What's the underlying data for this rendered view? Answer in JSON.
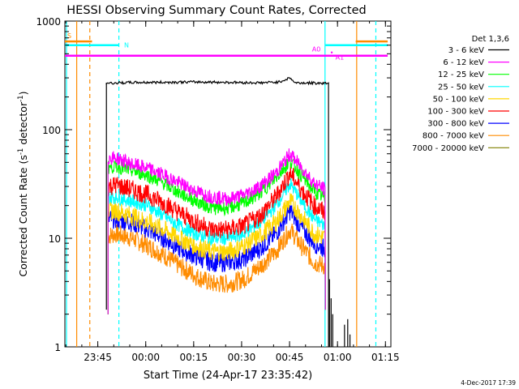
{
  "chart_data": {
    "type": "line",
    "title": "HESSI Observing Summary Count Rates, Corrected",
    "xlabel": "Start Time (24-Apr-17 23:35:42)",
    "ylabel_main": "Corrected Count Rate (s",
    "ylabel_sup": "-1",
    "ylabel_mid": " detector",
    "ylabel_end": ")",
    "yscale": "log",
    "ylim": [
      1,
      1000
    ],
    "xlim": [
      -1,
      101
    ],
    "x_unit": "minutes after 23:35:42",
    "x_ticks": [
      {
        "x": 9.3,
        "label": "23:45"
      },
      {
        "x": 24.3,
        "label": "00:00"
      },
      {
        "x": 39.3,
        "label": "00:15"
      },
      {
        "x": 54.3,
        "label": "00:30"
      },
      {
        "x": 69.3,
        "label": "00:45"
      },
      {
        "x": 84.3,
        "label": "01:00"
      },
      {
        "x": 99.3,
        "label": "01:15"
      }
    ],
    "y_ticks": [
      {
        "y": 1,
        "label": "1"
      },
      {
        "y": 10,
        "label": "10"
      },
      {
        "y": 100,
        "label": "100"
      },
      {
        "y": 1000,
        "label": "1000"
      }
    ],
    "legend_title": "Det 1,3,6",
    "legend_position": "right",
    "series": [
      {
        "name": "3 - 6 keV",
        "color": "#000000",
        "x": [
          12.0,
          13.5,
          20.0,
          30.0,
          40.0,
          50.0,
          60.0,
          66.0,
          69.5,
          71.0,
          80.0,
          81.5
        ],
        "y": [
          270,
          268,
          272,
          273,
          275,
          273,
          270,
          275,
          300,
          270,
          268,
          270
        ]
      },
      {
        "name": "6 - 12 keV",
        "color": "#ff00ff",
        "x": [
          12.5,
          15,
          20,
          25,
          30,
          35,
          40,
          45,
          50,
          55,
          60,
          65,
          69.5,
          73,
          77,
          80.5
        ],
        "y": [
          55,
          55,
          48,
          44,
          38,
          32,
          27,
          24,
          23,
          25,
          30,
          40,
          60,
          45,
          32,
          28
        ]
      },
      {
        "name": "12 - 25 keV",
        "color": "#00ff00",
        "x": [
          12.5,
          15,
          20,
          25,
          30,
          35,
          40,
          45,
          50,
          55,
          60,
          65,
          69.5,
          73,
          77,
          80.5
        ],
        "y": [
          45,
          46,
          42,
          38,
          32,
          26,
          22,
          19,
          19,
          21,
          26,
          36,
          52,
          38,
          27,
          23
        ]
      },
      {
        "name": "25 - 50 keV",
        "color": "#00ffff",
        "x": [
          12.5,
          15,
          20,
          25,
          30,
          35,
          40,
          45,
          50,
          55,
          60,
          65,
          69.5,
          73,
          77,
          80.5
        ],
        "y": [
          24,
          24,
          22,
          20,
          16,
          13,
          11,
          10,
          10,
          11,
          14,
          20,
          32,
          22,
          15,
          13
        ]
      },
      {
        "name": "50 - 100 keV",
        "color": "#ffd700",
        "x": [
          12.5,
          15,
          20,
          25,
          30,
          35,
          40,
          45,
          50,
          55,
          60,
          65,
          69.5,
          73,
          77,
          80.5
        ],
        "y": [
          18,
          18,
          16,
          14,
          12,
          10,
          8.5,
          7.5,
          7.5,
          8.5,
          10.5,
          14,
          22,
          16,
          11,
          10
        ]
      },
      {
        "name": "100 - 300 keV",
        "color": "#ff0000",
        "x": [
          12.5,
          15,
          20,
          25,
          30,
          35,
          40,
          45,
          50,
          55,
          60,
          65,
          69.5,
          73,
          77,
          80.5
        ],
        "y": [
          30,
          31,
          28,
          25,
          21,
          17,
          14,
          12,
          12,
          13,
          16,
          24,
          40,
          28,
          20,
          17
        ]
      },
      {
        "name": "300 - 800 keV",
        "color": "#0000ff",
        "x": [
          12.5,
          15,
          20,
          25,
          30,
          35,
          40,
          45,
          50,
          55,
          60,
          65,
          69.5,
          73,
          77,
          80.5
        ],
        "y": [
          15,
          15,
          14,
          12,
          10,
          8,
          6.8,
          6,
          6,
          6.5,
          8,
          11,
          18,
          12.5,
          9,
          8
        ]
      },
      {
        "name": "800 - 7000 keV",
        "color": "#ff8c00",
        "x": [
          12.5,
          15,
          20,
          25,
          30,
          35,
          40,
          45,
          50,
          55,
          60,
          65,
          69.5,
          73,
          77,
          80.5
        ],
        "y": [
          10.5,
          11,
          10,
          8.5,
          7,
          5.5,
          4.5,
          3.8,
          3.8,
          4.2,
          5.5,
          7.5,
          12,
          8.5,
          6,
          5.5
        ]
      },
      {
        "name": "7000 - 20000 keV",
        "color": "#808000",
        "x": [],
        "y": []
      }
    ],
    "flags": [
      {
        "label": "S",
        "color": "#ff8c00",
        "y": 650,
        "x": [
          -1,
          7.5
        ]
      },
      {
        "label": "N",
        "color": "#00ffff",
        "y": 600,
        "x": [
          -1,
          16
        ]
      },
      {
        "label": "",
        "color": "#ff8c00",
        "y": 650,
        "x": [
          90,
          100
        ]
      },
      {
        "label": "",
        "color": "#00ffff",
        "y": 600,
        "x": [
          80.5,
          100
        ]
      },
      {
        "label": "A0",
        "color": "#ff00ff",
        "y": 480,
        "x": [
          -1,
          100
        ]
      },
      {
        "label": "A1",
        "color": "#ff00ff",
        "y": 480,
        "x": null
      }
    ],
    "vlines": [
      {
        "x": -0.5,
        "color": "#00ffff",
        "style": "solid"
      },
      {
        "x": 2.7,
        "color": "#ff8c00",
        "style": "solid"
      },
      {
        "x": 6.8,
        "color": "#ff8c00",
        "style": "dashed"
      },
      {
        "x": 15.9,
        "color": "#00ffff",
        "style": "dashed"
      },
      {
        "x": 80.4,
        "color": "#00ffff",
        "style": "solid"
      },
      {
        "x": 90.3,
        "color": "#ff8c00",
        "style": "solid"
      },
      {
        "x": 96.3,
        "color": "#00ffff",
        "style": "dashed"
      }
    ],
    "grid": false,
    "footer_stamp": "4-Dec-2017 17:39"
  }
}
